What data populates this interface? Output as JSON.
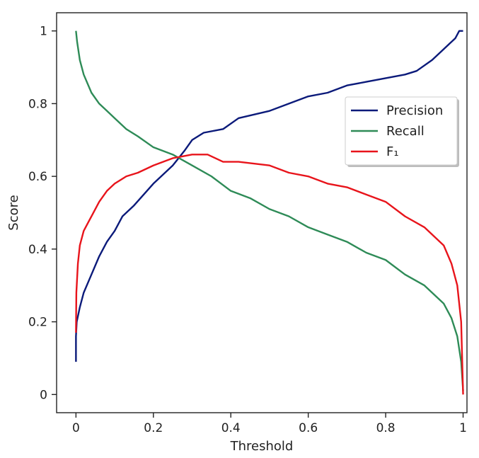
{
  "chart_data": {
    "type": "line",
    "title": "",
    "xlabel": "Threshold",
    "ylabel": "Score",
    "xlim": [
      -0.05,
      1.01
    ],
    "ylim": [
      -0.05,
      1.05
    ],
    "x_ticks": [
      0,
      0.2,
      0.4,
      0.6,
      0.8,
      1
    ],
    "x_tick_labels": [
      "0",
      "0.2",
      "0.4",
      "0.6",
      "0.8",
      "1"
    ],
    "y_ticks": [
      0,
      0.2,
      0.4,
      0.6,
      0.8,
      1
    ],
    "y_tick_labels": [
      "0",
      "0.2",
      "0.4",
      "0.6",
      "0.8",
      "1"
    ],
    "grid": false,
    "legend_position": "upper-right",
    "series": [
      {
        "name": "Precision",
        "color": "#0b1a7a",
        "points": [
          [
            0,
            0.09
          ],
          [
            0,
            0.16
          ],
          [
            0.002,
            0.2
          ],
          [
            0.01,
            0.24
          ],
          [
            0.02,
            0.28
          ],
          [
            0.04,
            0.33
          ],
          [
            0.06,
            0.38
          ],
          [
            0.08,
            0.42
          ],
          [
            0.1,
            0.45
          ],
          [
            0.12,
            0.49
          ],
          [
            0.15,
            0.52
          ],
          [
            0.2,
            0.58
          ],
          [
            0.25,
            0.63
          ],
          [
            0.28,
            0.67
          ],
          [
            0.3,
            0.7
          ],
          [
            0.33,
            0.72
          ],
          [
            0.38,
            0.73
          ],
          [
            0.42,
            0.76
          ],
          [
            0.5,
            0.78
          ],
          [
            0.55,
            0.8
          ],
          [
            0.6,
            0.82
          ],
          [
            0.65,
            0.83
          ],
          [
            0.7,
            0.85
          ],
          [
            0.75,
            0.86
          ],
          [
            0.8,
            0.87
          ],
          [
            0.85,
            0.88
          ],
          [
            0.88,
            0.89
          ],
          [
            0.92,
            0.92
          ],
          [
            0.95,
            0.95
          ],
          [
            0.98,
            0.98
          ],
          [
            0.99,
            1.0
          ],
          [
            1.0,
            1.0
          ]
        ]
      },
      {
        "name": "Recall",
        "color": "#2e8b57",
        "points": [
          [
            0,
            1.0
          ],
          [
            0.003,
            0.97
          ],
          [
            0.01,
            0.92
          ],
          [
            0.02,
            0.88
          ],
          [
            0.04,
            0.83
          ],
          [
            0.06,
            0.8
          ],
          [
            0.08,
            0.78
          ],
          [
            0.1,
            0.76
          ],
          [
            0.13,
            0.73
          ],
          [
            0.16,
            0.71
          ],
          [
            0.2,
            0.68
          ],
          [
            0.25,
            0.66
          ],
          [
            0.3,
            0.63
          ],
          [
            0.35,
            0.6
          ],
          [
            0.4,
            0.56
          ],
          [
            0.45,
            0.54
          ],
          [
            0.5,
            0.51
          ],
          [
            0.55,
            0.49
          ],
          [
            0.6,
            0.46
          ],
          [
            0.65,
            0.44
          ],
          [
            0.7,
            0.42
          ],
          [
            0.75,
            0.39
          ],
          [
            0.8,
            0.37
          ],
          [
            0.85,
            0.33
          ],
          [
            0.9,
            0.3
          ],
          [
            0.95,
            0.25
          ],
          [
            0.97,
            0.21
          ],
          [
            0.985,
            0.16
          ],
          [
            0.995,
            0.09
          ],
          [
            1.0,
            0.01
          ]
        ]
      },
      {
        "name": "F₁",
        "color": "#e8141b",
        "points": [
          [
            0,
            0.17
          ],
          [
            0.001,
            0.28
          ],
          [
            0.005,
            0.36
          ],
          [
            0.01,
            0.41
          ],
          [
            0.02,
            0.45
          ],
          [
            0.04,
            0.49
          ],
          [
            0.06,
            0.53
          ],
          [
            0.08,
            0.56
          ],
          [
            0.1,
            0.58
          ],
          [
            0.13,
            0.6
          ],
          [
            0.16,
            0.61
          ],
          [
            0.2,
            0.63
          ],
          [
            0.25,
            0.65
          ],
          [
            0.3,
            0.66
          ],
          [
            0.34,
            0.66
          ],
          [
            0.38,
            0.64
          ],
          [
            0.42,
            0.64
          ],
          [
            0.5,
            0.63
          ],
          [
            0.55,
            0.61
          ],
          [
            0.6,
            0.6
          ],
          [
            0.65,
            0.58
          ],
          [
            0.7,
            0.57
          ],
          [
            0.75,
            0.55
          ],
          [
            0.8,
            0.53
          ],
          [
            0.85,
            0.49
          ],
          [
            0.9,
            0.46
          ],
          [
            0.95,
            0.41
          ],
          [
            0.97,
            0.36
          ],
          [
            0.985,
            0.3
          ],
          [
            0.995,
            0.2
          ],
          [
            1.0,
            0.0
          ]
        ]
      }
    ]
  }
}
